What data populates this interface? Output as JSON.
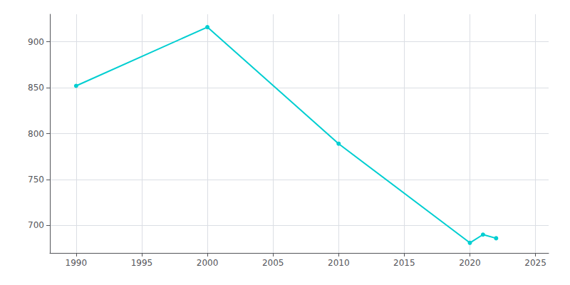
{
  "chart_data": {
    "type": "line",
    "x": [
      1990,
      2000,
      2010,
      2020,
      2021,
      2022
    ],
    "values": [
      852,
      916,
      789,
      681,
      690,
      686
    ],
    "color": "#00CED1",
    "marker": "circle",
    "xlim": [
      1988,
      2026
    ],
    "xticks": [
      1990,
      1995,
      2000,
      2005,
      2010,
      2015,
      2020,
      2025
    ],
    "ylim": [
      670,
      930
    ],
    "yticks": [
      700,
      750,
      800,
      850,
      900
    ],
    "grid": true
  }
}
